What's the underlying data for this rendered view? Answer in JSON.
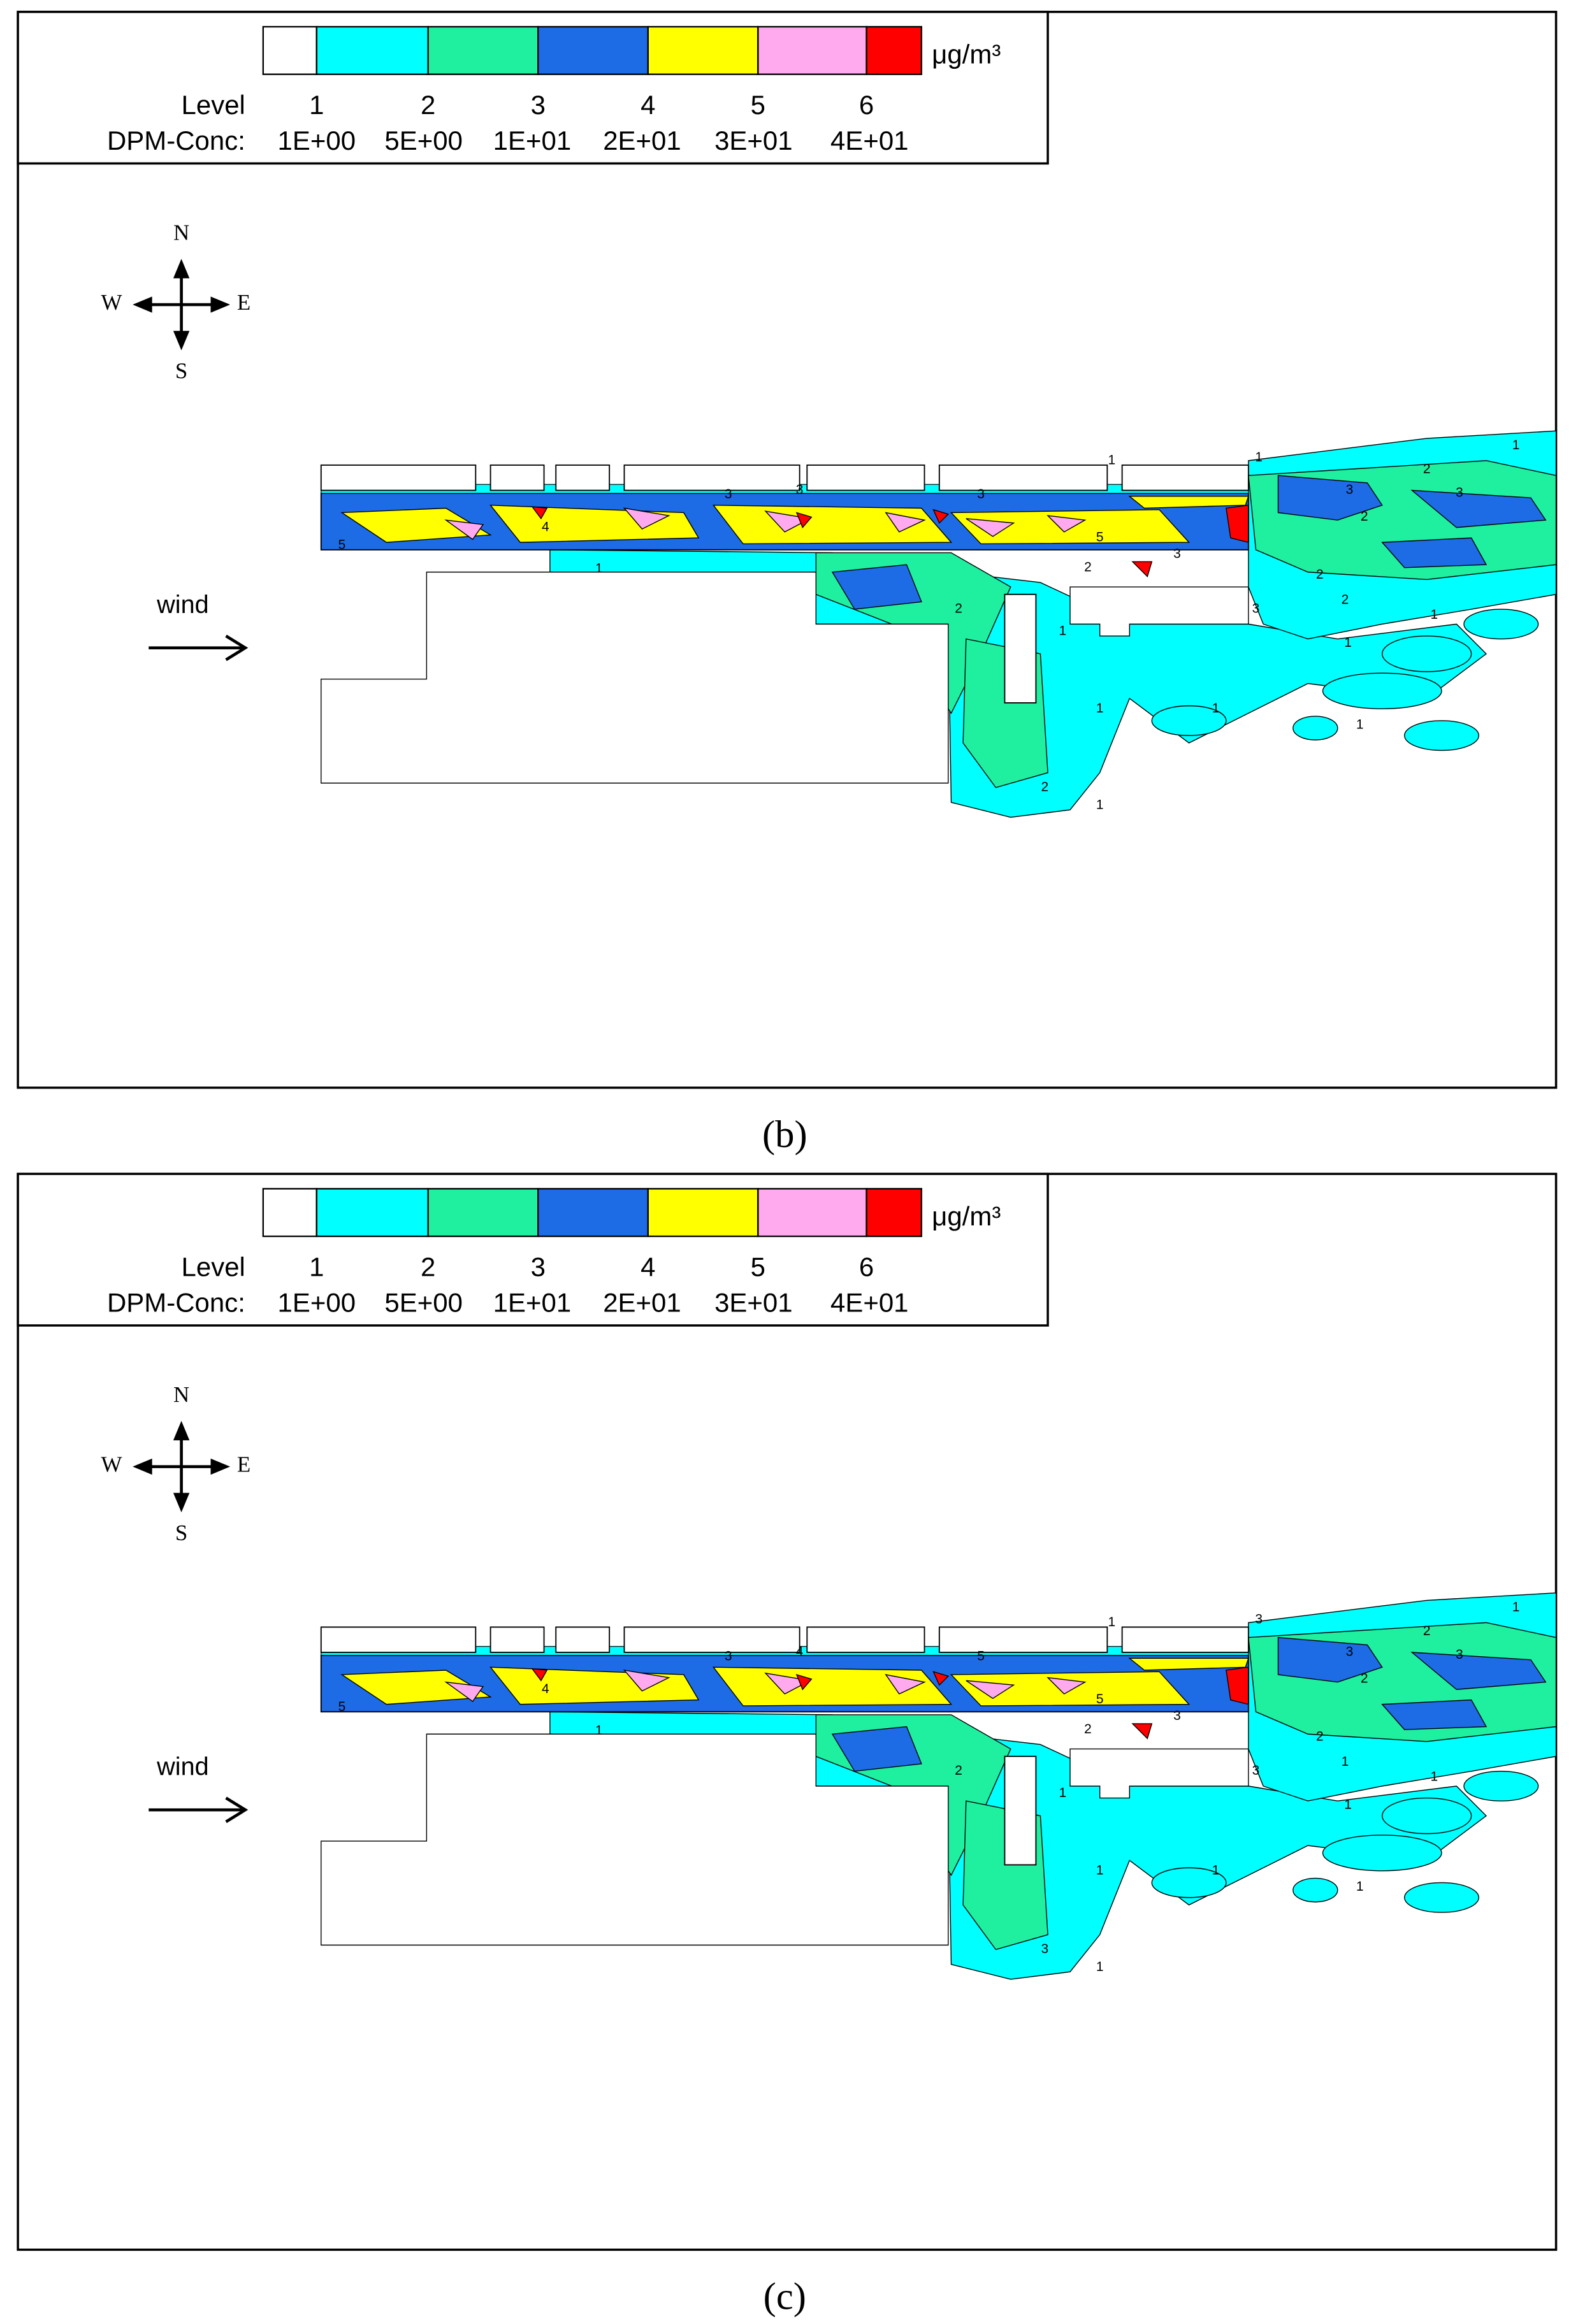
{
  "panels": [
    {
      "caption": "(b)",
      "legend": {
        "unit": "μg/m³",
        "level_title": "Level",
        "conc_title": "DPM-Conc:",
        "colors": [
          "#ffffff",
          "#00ffff",
          "#1ef0a0",
          "#1e6be6",
          "#ffff00",
          "#ffaaee",
          "#ff0000"
        ],
        "levels": [
          "1",
          "2",
          "3",
          "4",
          "5",
          "6"
        ],
        "concentrations": [
          "1E+00",
          "5E+00",
          "1E+01",
          "2E+01",
          "3E+01",
          "4E+01"
        ]
      },
      "compass": {
        "n": "N",
        "s": "S",
        "w": "W",
        "e": "E"
      },
      "wind": "wind",
      "contour_labels": [
        "1",
        "1",
        "1",
        "2",
        "3",
        "3",
        "2",
        "3",
        "3",
        "3",
        "4",
        "5",
        "5",
        "1",
        "2",
        "3",
        "2",
        "2",
        "1",
        "1",
        "3",
        "2",
        "1",
        "1",
        "1",
        "1",
        "1",
        "2"
      ]
    },
    {
      "caption": "(c)",
      "legend": {
        "unit": "μg/m³",
        "level_title": "Level",
        "conc_title": "DPM-Conc:",
        "colors": [
          "#ffffff",
          "#00ffff",
          "#1ef0a0",
          "#1e6be6",
          "#ffff00",
          "#ffaaee",
          "#ff0000"
        ],
        "levels": [
          "1",
          "2",
          "3",
          "4",
          "5",
          "6"
        ],
        "concentrations": [
          "1E+00",
          "5E+00",
          "1E+01",
          "2E+01",
          "3E+01",
          "4E+01"
        ]
      },
      "compass": {
        "n": "N",
        "s": "S",
        "w": "W",
        "e": "E"
      },
      "wind": "wind",
      "contour_labels": [
        "1",
        "3",
        "1",
        "2",
        "3",
        "3",
        "2",
        "3",
        "4",
        "5",
        "4",
        "5",
        "5",
        "1",
        "2",
        "3",
        "2",
        "1",
        "1",
        "1",
        "3",
        "2",
        "1",
        "1",
        "1",
        "1",
        "1",
        "3"
      ]
    }
  ]
}
